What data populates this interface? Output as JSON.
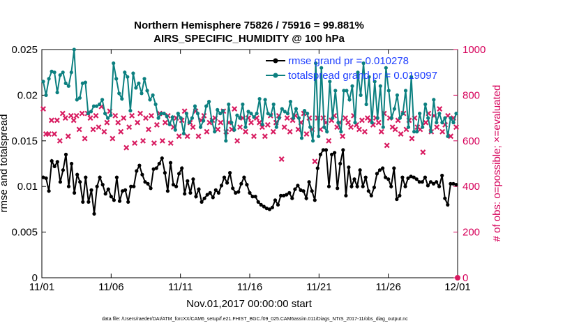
{
  "chart_data": {
    "type": "line",
    "title": "Northern Hemisphere 75826 / 75916 = 99.881%",
    "subtitle": "AIRS_SPECIFIC_HUMIDITY @ 100 hPa",
    "xlabel": "Nov.01,2017 00:00:00 start",
    "ylabel": "rmse and totalspread",
    "y2label": "# of obs: o=possible; ×=evaluated",
    "x_ticks": [
      "11/01",
      "11/06",
      "11/11",
      "11/16",
      "11/21",
      "11/26",
      "12/01"
    ],
    "y_ticks": [
      "0",
      "0.005",
      "0.01",
      "0.015",
      "0.02",
      "0.025"
    ],
    "y2_ticks": [
      "0",
      "200",
      "400",
      "600",
      "800",
      "1000"
    ],
    "xlim": [
      0,
      30
    ],
    "ylim": [
      0,
      0.025
    ],
    "y2lim": [
      0,
      1000
    ],
    "footnote": "data file: /Users/raeder/DAI/ATM_forcXX/CAM6_setup/f.e21.FHIST_BGC.f09_025.CAM6assim.011/Diags_NTrS_2017-11/obs_diag_output.nc",
    "colors": {
      "rmse": "#000000",
      "spread": "#0c8080",
      "obs": "#d81b60",
      "legend_text": "#1f3fff",
      "right_axis": "#d6005a"
    },
    "series": [
      {
        "name": "rmse grand pr = 0.010278",
        "values": [
          0.011,
          0.0109,
          0.0095,
          0.0128,
          0.0122,
          0.0127,
          0.0105,
          0.0118,
          0.0135,
          0.01,
          0.0125,
          0.0093,
          0.0113,
          0.0105,
          0.0083,
          0.011,
          0.0083,
          0.0096,
          0.007,
          0.01,
          0.011,
          0.0102,
          0.0092,
          0.0097,
          0.0089,
          0.0085,
          0.011,
          0.0084,
          0.0095,
          0.0096,
          0.0083,
          0.01,
          0.01,
          0.0117,
          0.0123,
          0.0113,
          0.0105,
          0.0103,
          0.0098,
          0.0119,
          0.012,
          0.0125,
          0.0131,
          0.0115,
          0.0095,
          0.0126,
          0.0102,
          0.01,
          0.0114,
          0.012,
          0.0092,
          0.0106,
          0.0093,
          0.0108,
          0.0089,
          0.0097,
          0.0083,
          0.0087,
          0.0091,
          0.0093,
          0.0088,
          0.0096,
          0.0093,
          0.0101,
          0.011,
          0.0104,
          0.0115,
          0.0098,
          0.0093,
          0.0094,
          0.0103,
          0.011,
          0.0102,
          0.0093,
          0.0089,
          0.0089,
          0.0083,
          0.008,
          0.0078,
          0.0076,
          0.0075,
          0.0077,
          0.0085,
          0.008,
          0.009,
          0.009,
          0.0091,
          0.0093,
          0.0087,
          0.0097,
          0.0101,
          0.0096,
          0.0095,
          0.0087,
          0.0105,
          0.0095,
          0.0085,
          0.012,
          0.0135,
          0.014,
          0.014,
          0.01,
          0.0135,
          0.0137,
          0.0098,
          0.0125,
          0.014,
          0.009,
          0.0121,
          0.01,
          0.0108,
          0.01,
          0.0118,
          0.01,
          0.011,
          0.0095,
          0.009,
          0.0099,
          0.0114,
          0.0118,
          0.012,
          0.011,
          0.0108,
          0.01,
          0.012,
          0.0086,
          0.009,
          0.011,
          0.01,
          0.0109,
          0.0111,
          0.011,
          0.0108,
          0.0105,
          0.0105,
          0.011,
          0.0101,
          0.0105,
          0.0103,
          0.0105,
          0.01,
          0.0112,
          0.0087,
          0.008,
          0.0103,
          0.0103,
          0.0102
        ]
      },
      {
        "name": "totalspread grand pr = 0.019097",
        "values": [
          0.0215,
          0.02,
          0.0218,
          0.0226,
          0.0225,
          0.0203,
          0.0222,
          0.0225,
          0.0213,
          0.021,
          0.0225,
          0.025,
          0.0195,
          0.0197,
          0.0213,
          0.0214,
          0.018,
          0.0182,
          0.0188,
          0.0188,
          0.019,
          0.0195,
          0.018,
          0.0175,
          0.0178,
          0.0235,
          0.0218,
          0.0202,
          0.0196,
          0.0225,
          0.022,
          0.0183,
          0.0224,
          0.0208,
          0.0213,
          0.0202,
          0.0218,
          0.0205,
          0.0195,
          0.02,
          0.019,
          0.0175,
          0.018,
          0.018,
          0.0177,
          0.0168,
          0.0176,
          0.0162,
          0.018,
          0.0175,
          0.0158,
          0.018,
          0.017,
          0.0175,
          0.0188,
          0.018,
          0.0165,
          0.0172,
          0.0188,
          0.0193,
          0.0172,
          0.016,
          0.0184,
          0.018,
          0.0183,
          0.015,
          0.019,
          0.017,
          0.0162,
          0.0178,
          0.0175,
          0.019,
          0.0165,
          0.0182,
          0.018,
          0.0176,
          0.018,
          0.0196,
          0.0168,
          0.0195,
          0.018,
          0.0178,
          0.019,
          0.0165,
          0.0175,
          0.0185,
          0.0182,
          0.018,
          0.0193,
          0.0175,
          0.0185,
          0.0175,
          0.0153,
          0.0183,
          0.018,
          0.0165,
          0.015,
          0.0235,
          0.0155,
          0.023,
          0.0165,
          0.016,
          0.0215,
          0.0175,
          0.0205,
          0.017,
          0.016,
          0.0205,
          0.0205,
          0.0195,
          0.021,
          0.017,
          0.0225,
          0.02,
          0.0235,
          0.019,
          0.022,
          0.017,
          0.0215,
          0.0175,
          0.021,
          0.0165,
          0.023,
          0.0205,
          0.0175,
          0.0185,
          0.02,
          0.0175,
          0.018,
          0.0205,
          0.0165,
          0.022,
          0.016,
          0.016,
          0.018,
          0.0165,
          0.019,
          0.0175,
          0.016,
          0.0195,
          0.017,
          0.018,
          0.017,
          0.0175,
          0.0155,
          0.0175,
          0.017,
          0.018
        ]
      },
      {
        "name": "# of obs evaluated",
        "axis": "right",
        "values": [
          740,
          630,
          630,
          690,
          630,
          690,
          600,
          720,
          700,
          620,
          710,
          690,
          710,
          650,
          720,
          610,
          720,
          700,
          650,
          710,
          660,
          750,
          640,
          680,
          730,
          610,
          710,
          680,
          640,
          700,
          570,
          660,
          710,
          590,
          680,
          720,
          600,
          700,
          650,
          710,
          590,
          670,
          720,
          600,
          680,
          710,
          590,
          660,
          700,
          620,
          690,
          730,
          620,
          680,
          660,
          730,
          620,
          690,
          710,
          640,
          680,
          690,
          700,
          650,
          680,
          730,
          640,
          680,
          650,
          740,
          600,
          660,
          700,
          640,
          700,
          680,
          620,
          700,
          680,
          660,
          620,
          670,
          710,
          640,
          680,
          710,
          520,
          660,
          700,
          640,
          690,
          710,
          650,
          680,
          720,
          630,
          700,
          650,
          510,
          700,
          650,
          700,
          680,
          600,
          690,
          710,
          660,
          680,
          620,
          700,
          680,
          660,
          710,
          670,
          650,
          690,
          640,
          700,
          690,
          670,
          700,
          680,
          640,
          720,
          580,
          700,
          660,
          650,
          690,
          630,
          720,
          650,
          690,
          610,
          700,
          660,
          650,
          550,
          680,
          720,
          640,
          710,
          660,
          740,
          640,
          670,
          710,
          620,
          700,
          660
        ]
      }
    ],
    "possible_last": 0
  }
}
